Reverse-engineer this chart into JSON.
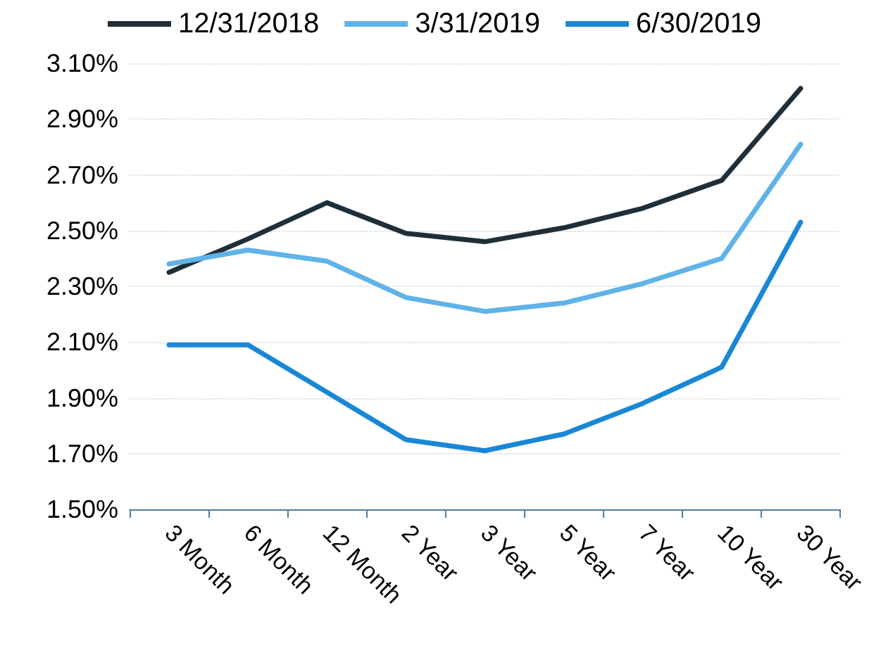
{
  "chart_data": {
    "type": "line",
    "categories": [
      "3 Month",
      "6 Month",
      "12 Month",
      "2 Year",
      "3 Year",
      "5 Year",
      "7 Year",
      "10 Year",
      "30 Year"
    ],
    "series": [
      {
        "name": "12/31/2018",
        "color": "#1f2f3a",
        "values": [
          2.35,
          2.47,
          2.6,
          2.49,
          2.46,
          2.51,
          2.58,
          2.68,
          3.01
        ]
      },
      {
        "name": "3/31/2019",
        "color": "#5fb3e8",
        "values": [
          2.38,
          2.43,
          2.39,
          2.26,
          2.21,
          2.24,
          2.31,
          2.4,
          2.81
        ]
      },
      {
        "name": "6/30/2019",
        "color": "#1a87d6",
        "values": [
          2.09,
          2.09,
          1.92,
          1.75,
          1.71,
          1.77,
          1.88,
          2.01,
          2.53
        ]
      }
    ],
    "ylim": [
      1.5,
      3.1
    ],
    "yticks": [
      {
        "value": 1.5,
        "label": "1.50%"
      },
      {
        "value": 1.7,
        "label": "1.70%"
      },
      {
        "value": 1.9,
        "label": "1.90%"
      },
      {
        "value": 2.1,
        "label": "2.10%"
      },
      {
        "value": 2.3,
        "label": "2.30%"
      },
      {
        "value": 2.5,
        "label": "2.50%"
      },
      {
        "value": 2.7,
        "label": "2.70%"
      },
      {
        "value": 2.9,
        "label": "2.90%"
      },
      {
        "value": 3.1,
        "label": "3.10%"
      }
    ],
    "grid": "y",
    "legend": "top",
    "marker": "none",
    "line_style": "solid"
  }
}
